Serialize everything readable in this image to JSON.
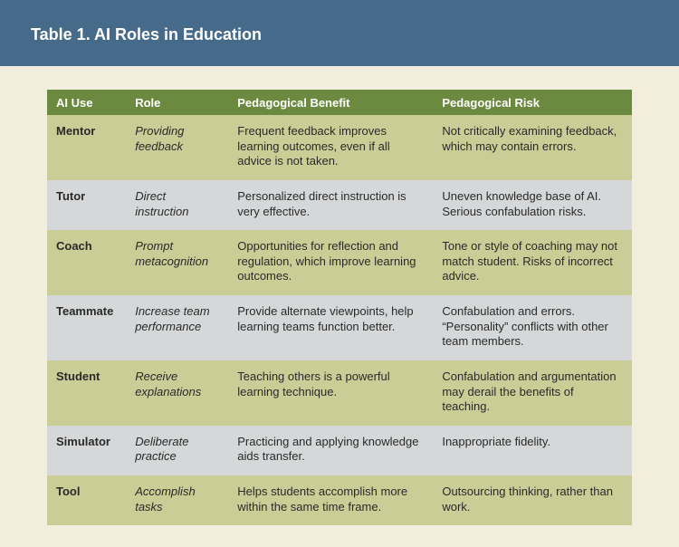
{
  "header": {
    "title": "Table 1. AI Roles in Education"
  },
  "table": {
    "type": "table",
    "header_bg": "#6c8a3f",
    "header_fg": "#ffffff",
    "row_odd_bg": "#cbcd97",
    "row_even_bg": "#d5d7d8",
    "page_bg": "#f1eedd",
    "banner_bg": "#466b8a",
    "columns": [
      {
        "key": "use",
        "label": "AI Use",
        "width_pct": 13.5,
        "bold": true
      },
      {
        "key": "role",
        "label": "Role",
        "width_pct": 17.5,
        "italic": true
      },
      {
        "key": "benefit",
        "label": "Pedagogical Benefit",
        "width_pct": 35
      },
      {
        "key": "risk",
        "label": "Pedagogical Risk",
        "width_pct": 34
      }
    ],
    "rows": [
      {
        "use": "Mentor",
        "role": "Providing feedback",
        "benefit": "Frequent feedback improves learning outcomes, even if all advice is not taken.",
        "risk": "Not critically examining feedback, which may contain errors."
      },
      {
        "use": "Tutor",
        "role": "Direct instruction",
        "benefit": "Personalized direct instruction is very effective.",
        "risk": "Uneven knowledge base of AI. Serious confabulation risks."
      },
      {
        "use": "Coach",
        "role": "Prompt metacognition",
        "benefit": "Opportunities for reflection and regulation, which improve learning outcomes.",
        "risk": "Tone or style of coaching may not match student. Risks of incorrect advice."
      },
      {
        "use": "Teammate",
        "role": "Increase team performance",
        "benefit": "Provide alternate viewpoints, help learning teams function better.",
        "risk": "Confabulation and errors. “Personality” conflicts with other team members."
      },
      {
        "use": "Student",
        "role": "Receive explanations",
        "benefit": "Teaching others is a powerful learning technique.",
        "risk": "Confabulation and argumentation may derail the benefits of teaching."
      },
      {
        "use": "Simulator",
        "role": "Deliberate practice",
        "benefit": "Practicing and applying knowledge aids transfer.",
        "risk": "Inappropriate fidelity."
      },
      {
        "use": "Tool",
        "role": "Accomplish tasks",
        "benefit": "Helps students accomplish more within the same time frame.",
        "risk": "Outsourcing thinking, rather than work."
      }
    ]
  }
}
